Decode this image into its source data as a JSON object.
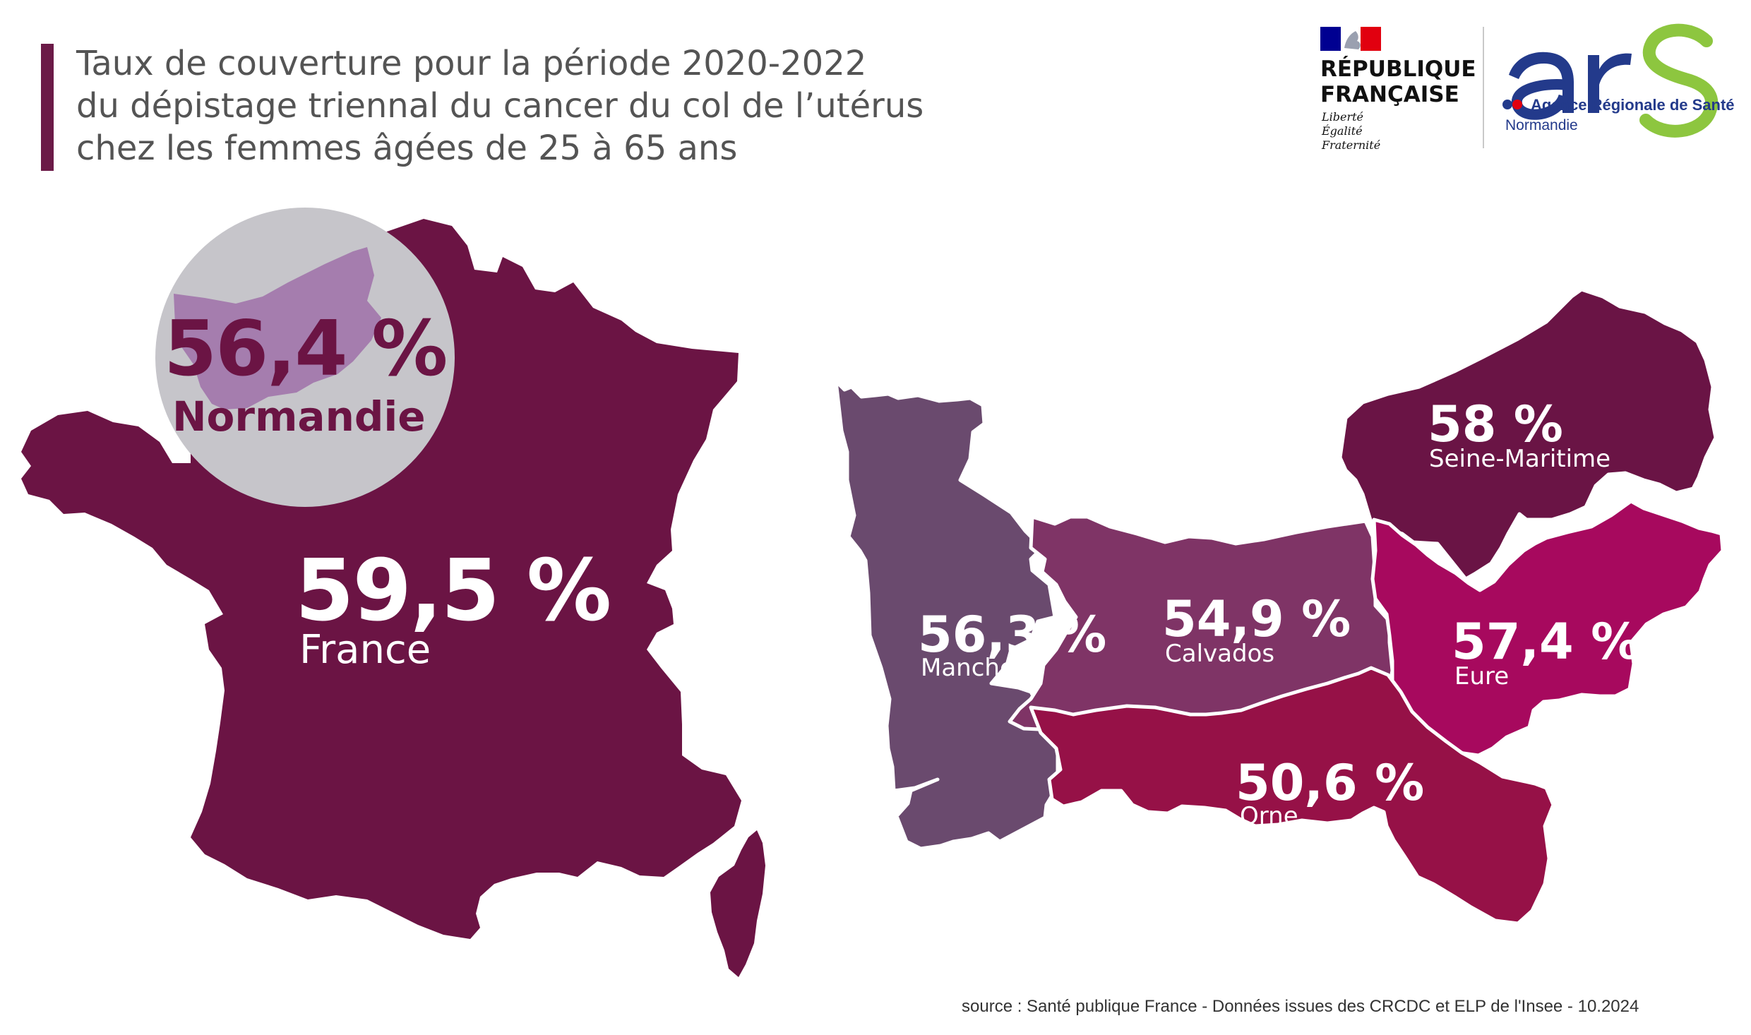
{
  "title": {
    "line1": "Taux de couverture pour la période 2020-2022",
    "line2": "du dépistage triennal du cancer du col de l’utérus",
    "line3": "chez les femmes âgées de 25 à 65 ans"
  },
  "logos": {
    "republique": {
      "name_line1": "RÉPUBLIQUE",
      "name_line2": "FRANÇAISE",
      "motto": [
        "Liberté",
        "Égalité",
        "Fraternité"
      ]
    },
    "ars": {
      "wordmark": "ars",
      "subtitle": "Agence Régionale de Santé",
      "region": "Normandie"
    }
  },
  "france": {
    "value": "59,5 %",
    "label": "France"
  },
  "normandie": {
    "value": "56,4 %",
    "label": "Normandie"
  },
  "departments": [
    {
      "name": "Seine-Maritime",
      "value": "58 %"
    },
    {
      "name": "Manche",
      "value": "56,3 %"
    },
    {
      "name": "Calvados",
      "value": "54,9 %"
    },
    {
      "name": "Eure",
      "value": "57,4 %"
    },
    {
      "name": "Orne",
      "value": "50,6 %"
    }
  ],
  "source": "source : Santé publique France - Données issues des CRCDC et ELP de l'Insee - 10.2024",
  "colors": {
    "france": "#6b1444",
    "seine_maritime": "#6a1445",
    "manche": "#6a4a6e",
    "calvados": "#7f3466",
    "eure": "#a7095e",
    "orne": "#961147",
    "normandie_circle": "#c6c5ca",
    "normandie_shape": "#a57dae",
    "title_bar": "#6b1a47",
    "ars_blue": "#233a8b",
    "ars_green": "#8dc63f"
  }
}
